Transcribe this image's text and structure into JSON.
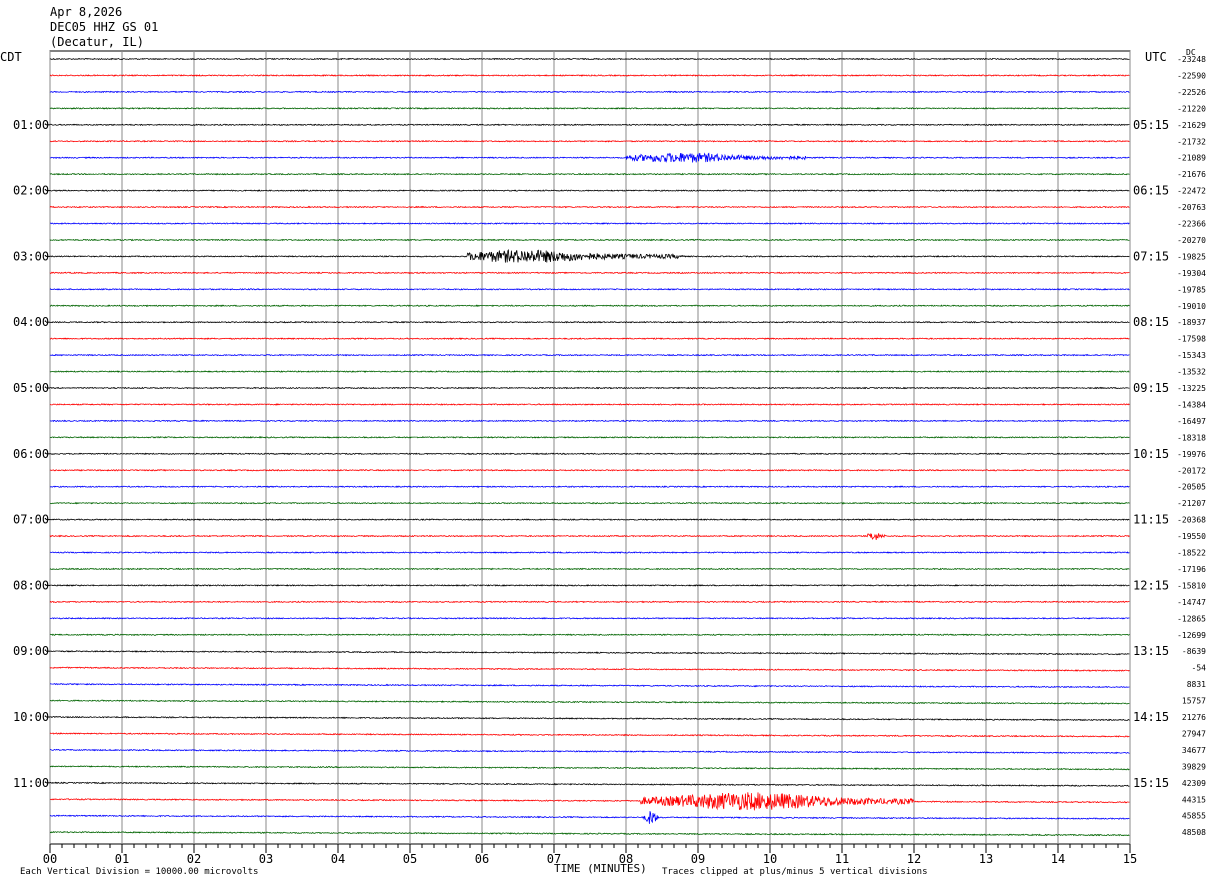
{
  "header": {
    "date": "Apr 8,2026",
    "station": "DEC05 HHZ GS 01",
    "location": "(Decatur, IL)",
    "left_tz": "CDT",
    "right_tz": "UTC",
    "dc_label": "DC"
  },
  "footer": {
    "scale_note": "Each Vertical Division = 10000.00 microvolts",
    "xlabel": "TIME (MINUTES)",
    "clip_note": "Traces clipped at plus/minus 5 vertical divisions"
  },
  "chart_data": {
    "type": "line",
    "title": "DEC05 HHZ GS 01",
    "xlabel": "TIME (MINUTES)",
    "xlim": [
      0,
      15
    ],
    "x_ticks": [
      "00",
      "01",
      "02",
      "03",
      "04",
      "05",
      "06",
      "07",
      "08",
      "09",
      "10",
      "11",
      "12",
      "13",
      "14",
      "15"
    ],
    "grid": true,
    "trace_colors": [
      "#000000",
      "#ff0000",
      "#0000ff",
      "#006400"
    ],
    "left_hour_labels": [
      "01:00",
      "02:00",
      "03:00",
      "04:00",
      "05:00",
      "06:00",
      "07:00",
      "08:00",
      "09:00",
      "10:00",
      "11:00"
    ],
    "right_hour_labels": [
      "05:15",
      "06:15",
      "07:15",
      "08:15",
      "09:15",
      "10:15",
      "11:15",
      "12:15",
      "13:15",
      "14:15",
      "15:15"
    ],
    "trace_offsets": [
      "-23248",
      "-22590",
      "-22526",
      "-21220",
      "-21629",
      "-21732",
      "-21089",
      "-21676",
      "-22472",
      "-20763",
      "-22366",
      "-20270",
      "-19825",
      "-19304",
      "-19785",
      "-19010",
      "-18937",
      "-17598",
      "-15343",
      "-13532",
      "-13225",
      "-14384",
      "-16497",
      "-18318",
      "-19976",
      "-20172",
      "-20505",
      "-21207",
      "-20368",
      "-19550",
      "-18522",
      "-17196",
      "-15810",
      "-14747",
      "-12865",
      "-12699",
      "-8639",
      "-54",
      "8831",
      "15757",
      "21276",
      "27947",
      "34677",
      "39829",
      "42309",
      "44315",
      "45855",
      "48508"
    ],
    "events": [
      {
        "trace": 6,
        "start_min": 8.0,
        "end_min": 10.5,
        "peak_min": 8.8,
        "amplitude": 0.55
      },
      {
        "trace": 12,
        "start_min": 5.8,
        "end_min": 8.8,
        "peak_min": 6.6,
        "amplitude": 0.75
      },
      {
        "trace": 29,
        "start_min": 11.35,
        "end_min": 11.6,
        "peak_min": 11.45,
        "amplitude": 0.5
      },
      {
        "trace": 45,
        "start_min": 8.2,
        "end_min": 12.0,
        "peak_min": 9.7,
        "amplitude": 1.05
      },
      {
        "trace": 46,
        "start_min": 8.25,
        "end_min": 8.45,
        "peak_min": 8.35,
        "amplitude": 0.9
      }
    ]
  }
}
